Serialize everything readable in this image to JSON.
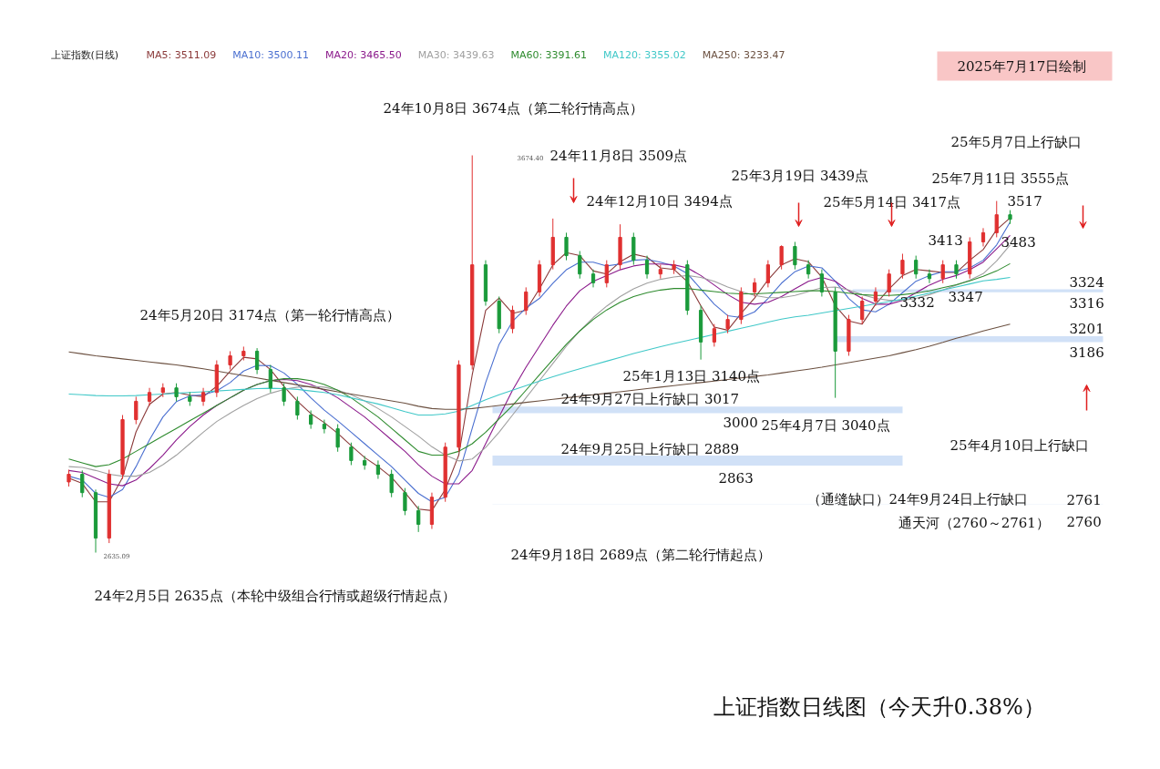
{
  "chart_data": {
    "type": "candlestick",
    "title": "上证指数日线图（今天升0.38%）",
    "legend_title": "上证指数(日线)",
    "legend": "top left",
    "tick_labels": false,
    "categories": [
      null,
      null,
      null,
      null,
      null,
      null,
      null,
      null,
      null,
      null,
      null,
      null,
      null,
      null,
      null,
      null,
      null,
      null,
      null,
      null,
      null,
      null,
      null,
      null,
      null,
      null,
      null,
      null,
      null,
      null,
      null,
      null,
      null,
      null,
      null,
      null,
      null,
      null,
      null,
      null,
      null,
      null,
      null,
      null,
      null,
      null,
      null,
      null,
      null,
      null,
      null,
      null,
      null,
      null,
      null,
      null,
      null,
      null,
      null,
      null,
      null,
      null,
      null,
      null,
      null,
      null,
      null,
      null,
      null,
      null,
      null
    ],
    "ohlc": [
      [
        2820,
        2852,
        2808,
        2840
      ],
      [
        2840,
        2850,
        2780,
        2792
      ],
      [
        2792,
        2800,
        2635.09,
        2673
      ],
      [
        2673,
        2852,
        2660,
        2840
      ],
      [
        2840,
        2995,
        2828,
        2983
      ],
      [
        2983,
        3043,
        2971,
        3031
      ],
      [
        3031,
        3066,
        3019,
        3054
      ],
      [
        3054,
        3078,
        3042,
        3066
      ],
      [
        3066,
        3078,
        3031,
        3043
      ],
      [
        3043,
        3055,
        3019,
        3031
      ],
      [
        3031,
        3066,
        3019,
        3054
      ],
      [
        3054,
        3138,
        3042,
        3126
      ],
      [
        3126,
        3162,
        3114,
        3150
      ],
      [
        3150,
        3174,
        3138,
        3162
      ],
      [
        3162,
        3170,
        3102,
        3114
      ],
      [
        3114,
        3126,
        3054,
        3066
      ],
      [
        3066,
        3078,
        3019,
        3031
      ],
      [
        3031,
        3043,
        2983,
        2995
      ],
      [
        2995,
        3007,
        2959,
        2971
      ],
      [
        2971,
        2983,
        2947,
        2959
      ],
      [
        2959,
        2971,
        2899,
        2911
      ],
      [
        2911,
        2923,
        2864,
        2876
      ],
      [
        2876,
        2888,
        2852,
        2864
      ],
      [
        2864,
        2876,
        2828,
        2840
      ],
      [
        2840,
        2852,
        2780,
        2792
      ],
      [
        2792,
        2804,
        2733,
        2745
      ],
      [
        2745,
        2757,
        2689,
        2709
      ],
      [
        2709,
        2792,
        2697,
        2780
      ],
      [
        2780,
        2923,
        2768,
        2911
      ],
      [
        2911,
        3138,
        2899,
        3126
      ],
      [
        3126,
        3674.4,
        3114,
        3388
      ],
      [
        3388,
        3400,
        3281,
        3293
      ],
      [
        3293,
        3305,
        3209,
        3221
      ],
      [
        3221,
        3281,
        3209,
        3269
      ],
      [
        3269,
        3329,
        3257,
        3317
      ],
      [
        3317,
        3400,
        3305,
        3388
      ],
      [
        3388,
        3509,
        3376,
        3460
      ],
      [
        3460,
        3472,
        3400,
        3412
      ],
      [
        3412,
        3424,
        3352,
        3364
      ],
      [
        3364,
        3376,
        3329,
        3341
      ],
      [
        3341,
        3400,
        3329,
        3388
      ],
      [
        3388,
        3494,
        3376,
        3460
      ],
      [
        3460,
        3472,
        3388,
        3400
      ],
      [
        3400,
        3412,
        3352,
        3364
      ],
      [
        3364,
        3388,
        3352,
        3376
      ],
      [
        3376,
        3400,
        3364,
        3388
      ],
      [
        3388,
        3400,
        3257,
        3269
      ],
      [
        3269,
        3281,
        3140,
        3186
      ],
      [
        3186,
        3233,
        3174,
        3221
      ],
      [
        3221,
        3257,
        3209,
        3245
      ],
      [
        3245,
        3329,
        3233,
        3317
      ],
      [
        3317,
        3353,
        3305,
        3341
      ],
      [
        3341,
        3400,
        3329,
        3388
      ],
      [
        3388,
        3439,
        3376,
        3436
      ],
      [
        3436,
        3448,
        3376,
        3388
      ],
      [
        3388,
        3400,
        3352,
        3364
      ],
      [
        3364,
        3376,
        3305,
        3317
      ],
      [
        3317,
        3329,
        3040,
        3162
      ],
      [
        3162,
        3257,
        3150,
        3245
      ],
      [
        3245,
        3305,
        3233,
        3293
      ],
      [
        3293,
        3329,
        3281,
        3317
      ],
      [
        3317,
        3376,
        3305,
        3364
      ],
      [
        3364,
        3417,
        3352,
        3400
      ],
      [
        3400,
        3412,
        3352,
        3364
      ],
      [
        3364,
        3376,
        3340,
        3352
      ],
      [
        3352,
        3400,
        3340,
        3388
      ],
      [
        3388,
        3400,
        3352,
        3364
      ],
      [
        3364,
        3460,
        3352,
        3448
      ],
      [
        3448,
        3484,
        3436,
        3472
      ],
      [
        3472,
        3555,
        3460,
        3519
      ],
      [
        3519,
        3531,
        3495,
        3507
      ]
    ],
    "series": [
      {
        "type": "line",
        "name": "MA5: 3511.09",
        "color": "#8b3a3a",
        "values": [
          2830,
          2816,
          2768,
          2768,
          2832,
          2951,
          3023,
          3050,
          3054,
          3047,
          3043,
          3070,
          3110,
          3146,
          3142,
          3114,
          3070,
          3031,
          2999,
          2975,
          2947,
          2915,
          2884,
          2860,
          2832,
          2792,
          2749,
          2745,
          2800,
          2890,
          3100,
          3269,
          3301,
          3261,
          3269,
          3325,
          3388,
          3420,
          3412,
          3372,
          3364,
          3396,
          3416,
          3408,
          3380,
          3376,
          3344,
          3281,
          3225,
          3217,
          3261,
          3301,
          3349,
          3388,
          3404,
          3396,
          3356,
          3281,
          3241,
          3233,
          3285,
          3325,
          3360,
          3376,
          3372,
          3368,
          3368,
          3400,
          3428,
          3480,
          3511
        ]
      },
      {
        "type": "line",
        "name": "MA10: 3500.11",
        "color": "#4a6fd0",
        "values": [
          2835,
          2825,
          2790,
          2780,
          2800,
          2860,
          2930,
          2990,
          3030,
          3045,
          3048,
          3058,
          3080,
          3110,
          3125,
          3124,
          3105,
          3075,
          3040,
          3008,
          2980,
          2950,
          2920,
          2890,
          2860,
          2825,
          2790,
          2768,
          2780,
          2840,
          2960,
          3080,
          3180,
          3240,
          3275,
          3300,
          3340,
          3375,
          3395,
          3395,
          3385,
          3390,
          3400,
          3402,
          3395,
          3385,
          3365,
          3325,
          3285,
          3255,
          3250,
          3265,
          3300,
          3340,
          3370,
          3385,
          3380,
          3345,
          3300,
          3270,
          3265,
          3285,
          3315,
          3345,
          3360,
          3370,
          3370,
          3380,
          3400,
          3440,
          3500
        ]
      },
      {
        "type": "line",
        "name": "MA20: 3465.50",
        "color": "#8b1a8b",
        "values": [
          2850,
          2845,
          2830,
          2815,
          2810,
          2825,
          2855,
          2890,
          2930,
          2965,
          2995,
          3020,
          3040,
          3060,
          3075,
          3085,
          3088,
          3085,
          3075,
          3060,
          3040,
          3015,
          2990,
          2960,
          2930,
          2900,
          2865,
          2835,
          2815,
          2815,
          2850,
          2920,
          2990,
          3060,
          3120,
          3175,
          3230,
          3280,
          3320,
          3345,
          3360,
          3375,
          3385,
          3390,
          3390,
          3388,
          3380,
          3360,
          3335,
          3310,
          3290,
          3285,
          3290,
          3305,
          3325,
          3345,
          3355,
          3345,
          3320,
          3300,
          3285,
          3285,
          3295,
          3315,
          3335,
          3350,
          3360,
          3375,
          3395,
          3430,
          3465
        ]
      },
      {
        "type": "line",
        "name": "MA30: 3439.63",
        "color": "#a0a0a0",
        "values": [
          2860,
          2858,
          2850,
          2840,
          2835,
          2835,
          2845,
          2865,
          2890,
          2920,
          2950,
          2978,
          3000,
          3020,
          3038,
          3052,
          3062,
          3068,
          3070,
          3068,
          3060,
          3048,
          3032,
          3012,
          2990,
          2965,
          2940,
          2912,
          2890,
          2875,
          2880,
          2910,
          2950,
          2995,
          3040,
          3085,
          3130,
          3175,
          3215,
          3250,
          3280,
          3305,
          3325,
          3340,
          3350,
          3356,
          3360,
          3355,
          3345,
          3330,
          3318,
          3308,
          3302,
          3302,
          3308,
          3318,
          3328,
          3330,
          3322,
          3310,
          3300,
          3295,
          3295,
          3300,
          3310,
          3322,
          3335,
          3348,
          3365,
          3398,
          3440
        ]
      },
      {
        "type": "line",
        "name": "MA60: 3391.61",
        "color": "#2e8b2e",
        "values": [
          2880,
          2870,
          2860,
          2865,
          2880,
          2900,
          2920,
          2940,
          2960,
          2980,
          3000,
          3020,
          3040,
          3060,
          3075,
          3085,
          3090,
          3090,
          3085,
          3075,
          3060,
          3040,
          3015,
          2990,
          2960,
          2930,
          2900,
          2890,
          2890,
          2900,
          2920,
          2950,
          2985,
          3020,
          3060,
          3100,
          3140,
          3180,
          3215,
          3245,
          3270,
          3290,
          3305,
          3315,
          3322,
          3326,
          3326,
          3322,
          3318,
          3314,
          3312,
          3312,
          3314,
          3316,
          3318,
          3320,
          3320,
          3318,
          3314,
          3310,
          3308,
          3308,
          3310,
          3314,
          3320,
          3328,
          3336,
          3346,
          3358,
          3372,
          3391
        ]
      },
      {
        "type": "line",
        "name": "MA120: 3355.02",
        "color": "#40c8c8",
        "values": [
          3050,
          3048,
          3046,
          3045,
          3045,
          3046,
          3048,
          3050,
          3052,
          3054,
          3056,
          3058,
          3060,
          3062,
          3064,
          3065,
          3064,
          3062,
          3058,
          3054,
          3048,
          3040,
          3032,
          3024,
          3014,
          3004,
          2995,
          2995,
          2998,
          3005,
          3020,
          3035,
          3048,
          3060,
          3072,
          3084,
          3095,
          3106,
          3116,
          3126,
          3136,
          3146,
          3156,
          3165,
          3174,
          3182,
          3190,
          3198,
          3206,
          3214,
          3222,
          3230,
          3238,
          3246,
          3252,
          3256,
          3262,
          3268,
          3274,
          3280,
          3286,
          3292,
          3298,
          3306,
          3314,
          3322,
          3330,
          3338,
          3346,
          3350,
          3355
        ]
      },
      {
        "type": "line",
        "name": "MA250: 3233.47",
        "color": "#6b5040",
        "values": [
          3160,
          3155,
          3150,
          3146,
          3142,
          3138,
          3134,
          3130,
          3126,
          3121,
          3116,
          3110,
          3104,
          3098,
          3092,
          3086,
          3080,
          3074,
          3068,
          3062,
          3056,
          3050,
          3044,
          3038,
          3032,
          3026,
          3018,
          3012,
          3010,
          3010,
          3012,
          3016,
          3020,
          3024,
          3028,
          3032,
          3036,
          3040,
          3044,
          3048,
          3052,
          3056,
          3060,
          3064,
          3068,
          3072,
          3076,
          3080,
          3084,
          3088,
          3092,
          3096,
          3100,
          3105,
          3110,
          3115,
          3120,
          3126,
          3132,
          3138,
          3144,
          3150,
          3158,
          3166,
          3175,
          3185,
          3196,
          3205,
          3215,
          3224,
          3233
        ]
      }
    ],
    "bands": [
      {
        "axis": "y",
        "from": 3316,
        "to": 3324,
        "color": "#c6d9f5"
      },
      {
        "axis": "y",
        "from": 3186,
        "to": 3201,
        "color": "#c6d9f5"
      },
      {
        "axis": "y",
        "from": 3000,
        "to": 3017,
        "color": "#c6d9f5"
      },
      {
        "axis": "y",
        "from": 2863,
        "to": 2889,
        "color": "#c6d9f5"
      },
      {
        "axis": "y",
        "from": 2760,
        "to": 2761,
        "color": "#c6d9f5"
      }
    ],
    "annotations": [
      "24年10月8日 3674点（第二轮行情高点）",
      "24年11月8日 3509点",
      "24年12月10日 3494点",
      "25年3月19日 3439点",
      "25年5月14日 3417点",
      "25年7月11日 3555点",
      "25年5月7日上行缺口",
      "3517",
      "3413",
      "3483",
      "3324",
      "3316",
      "3332",
      "3347",
      "3201",
      "3186",
      "24年5月20日 3174点（第一轮行情高点）",
      "25年1月13日 3140点",
      "24年9月27日上行缺口 3017",
      "3000",
      "25年4月7日 3040点",
      "25年4月10日上行缺口",
      "24年9月25日上行缺口 2889",
      "2863",
      "（通缝缺口）24年9月24日上行缺口",
      "2761",
      "2760",
      "通天河（2760～2761）",
      "24年9月18日 2689点（第二轮行情起点）",
      "24年2月5日 2635点（本轮中级组合行情或超级行情起点）",
      "2025年7月17日绘制",
      "3674.40",
      "2635.09"
    ]
  }
}
